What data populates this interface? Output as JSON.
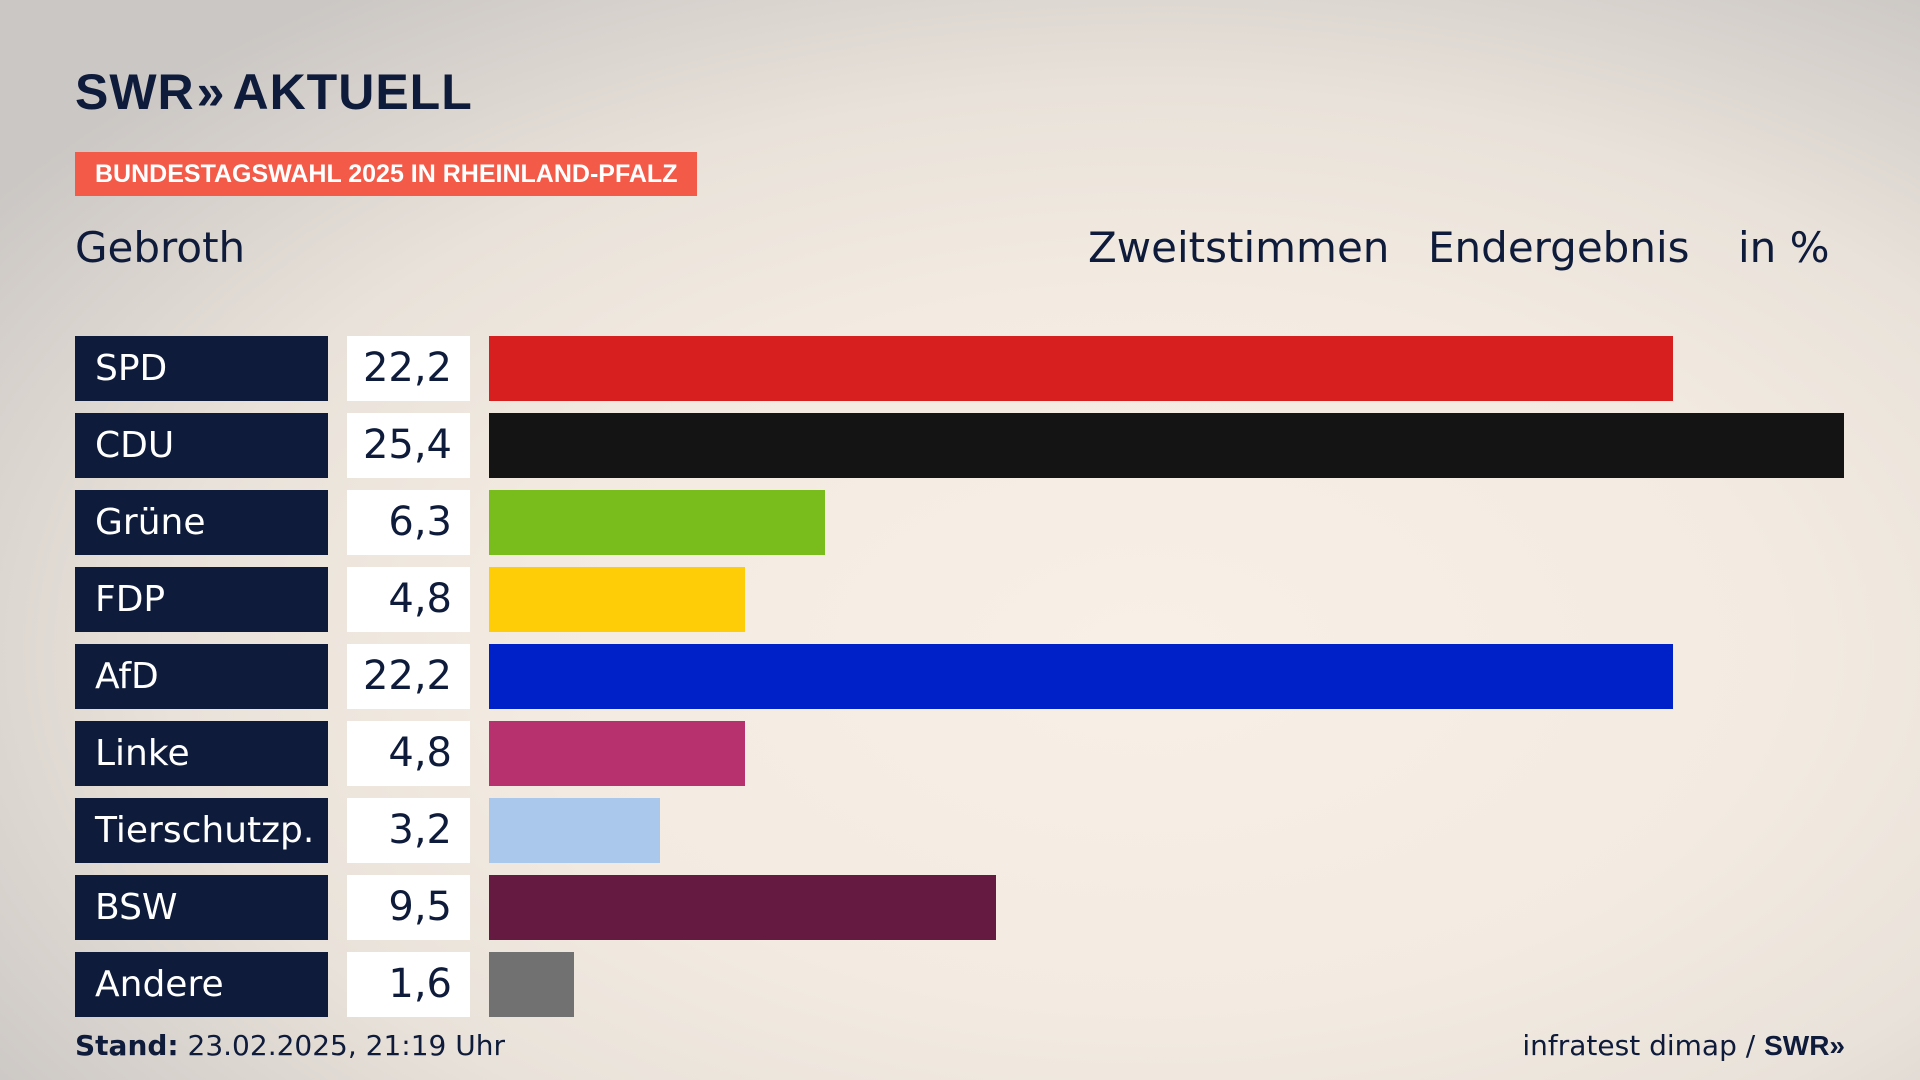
{
  "header": {
    "logo": "SWR",
    "logo_chevrons": "»",
    "logo_sub": "AKTUELL",
    "banner": "BUNDESTAGSWAHL 2025 IN RHEINLAND-PFALZ",
    "region": "Gebroth",
    "label_a": "Zweitstimmen",
    "label_b": "Endergebnis",
    "label_c": "in %"
  },
  "colors": {
    "label_bg": "#0e1b3a",
    "banner_bg": "#f45a48"
  },
  "chart_data": {
    "type": "bar",
    "orientation": "horizontal",
    "categories": [
      "SPD",
      "CDU",
      "Grüne",
      "FDP",
      "AfD",
      "Linke",
      "Tierschutzp.",
      "BSW",
      "Andere"
    ],
    "values": [
      22.2,
      25.4,
      6.3,
      4.8,
      22.2,
      4.8,
      3.2,
      9.5,
      1.6
    ],
    "value_labels": [
      "22,2",
      "25,4",
      "6,3",
      "4,8",
      "22,2",
      "4,8",
      "3,2",
      "9,5",
      "1,6"
    ],
    "colors": [
      "#d81f1f",
      "#141414",
      "#79bd1c",
      "#ffcd08",
      "#0020c8",
      "#b8316f",
      "#a9c8ec",
      "#651a41",
      "#717171"
    ],
    "xlim": [
      0,
      25.4
    ],
    "grid": false,
    "legend": "none"
  },
  "footer": {
    "stand_label": "Stand:",
    "stand_value": "23.02.2025, 21:19 Uhr",
    "source": "infratest dimap /",
    "source_brand": "SWR",
    "source_chevrons": "»"
  }
}
